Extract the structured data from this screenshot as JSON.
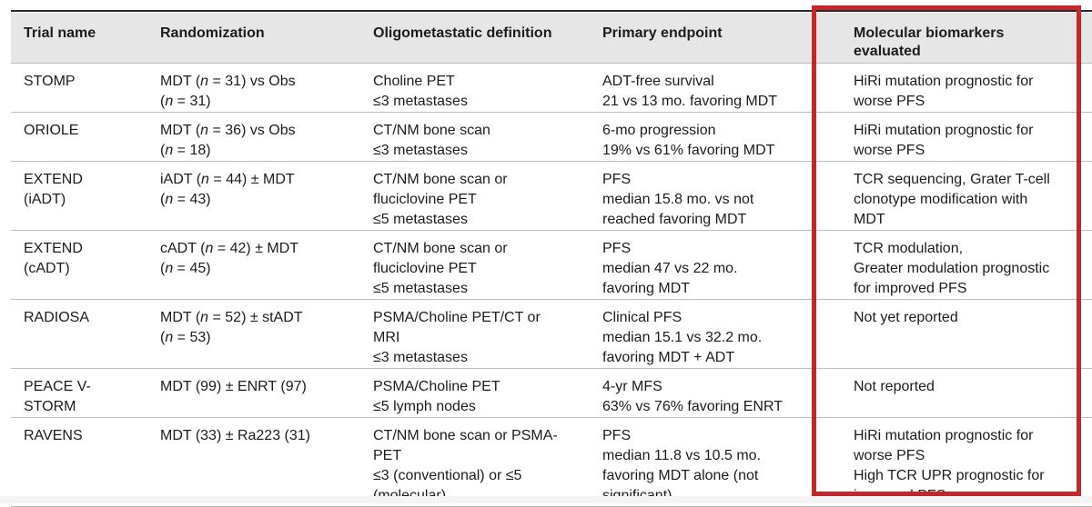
{
  "header": {
    "trial_name": "Trial name",
    "randomization": "Randomization",
    "definition": "Oligometastatic definition",
    "endpoint": "Primary endpoint",
    "biomarkers": [
      "Molecular biomarkers",
      "evaluated"
    ]
  },
  "rows": [
    {
      "trial": [
        "STOMP"
      ],
      "randomization": [
        "MDT (n = 31) vs Obs",
        "(n = 31)"
      ],
      "definition": [
        "Choline PET",
        "≤3 metastases"
      ],
      "endpoint": [
        "ADT-free survival",
        "21 vs 13 mo. favoring MDT"
      ],
      "biomarkers": [
        "HiRi mutation prognostic for",
        "worse PFS"
      ]
    },
    {
      "trial": [
        "ORIOLE"
      ],
      "randomization": [
        "MDT (n = 36) vs Obs",
        "(n = 18)"
      ],
      "definition": [
        "CT/NM bone scan",
        "≤3 metastases"
      ],
      "endpoint": [
        "6-mo progression",
        "19% vs 61% favoring MDT"
      ],
      "biomarkers": [
        "HiRi mutation prognostic for",
        "worse PFS"
      ]
    },
    {
      "trial": [
        "EXTEND",
        "(iADT)"
      ],
      "randomization": [
        "iADT (n = 44) ± MDT",
        "(n = 43)"
      ],
      "definition": [
        "CT/NM bone scan or",
        "fluciclovine PET",
        "≤5 metastases"
      ],
      "endpoint": [
        "PFS",
        "median 15.8 mo. vs not",
        "reached favoring MDT"
      ],
      "biomarkers": [
        "TCR sequencing, Grater T-cell",
        "clonotype modification with",
        "MDT"
      ]
    },
    {
      "trial": [
        "EXTEND",
        "(cADT)"
      ],
      "randomization": [
        "cADT (n = 42) ± MDT",
        "(n = 45)"
      ],
      "definition": [
        "CT/NM bone scan or",
        "fluciclovine PET",
        "≤5 metastases"
      ],
      "endpoint": [
        "PFS",
        "median 47 vs 22 mo.",
        "favoring MDT"
      ],
      "biomarkers": [
        "TCR modulation,",
        "Greater modulation prognostic",
        "for improved PFS"
      ]
    },
    {
      "trial": [
        "RADIOSA"
      ],
      "randomization": [
        "MDT (n = 52) ± stADT",
        "(n = 53)"
      ],
      "definition": [
        "PSMA/Choline PET/CT or",
        "MRI",
        "≤3 metastases"
      ],
      "endpoint": [
        "Clinical PFS",
        "median 15.1 vs 32.2 mo.",
        "favoring MDT + ADT"
      ],
      "biomarkers": [
        "Not yet reported"
      ]
    },
    {
      "trial": [
        "PEACE V-",
        "STORM"
      ],
      "randomization": [
        "MDT (99) ± ENRT (97)"
      ],
      "definition": [
        "PSMA/Choline PET",
        "≤5 lymph nodes"
      ],
      "endpoint": [
        "4-yr MFS",
        "63% vs 76% favoring ENRT"
      ],
      "biomarkers": [
        "Not reported"
      ]
    },
    {
      "trial": [
        "RAVENS"
      ],
      "randomization": [
        "MDT (33) ± Ra223 (31)"
      ],
      "definition": [
        "CT/NM bone scan or PSMA-",
        "PET",
        "≤3 (conventional) or ≤5",
        "(molecular)"
      ],
      "endpoint": [
        "PFS",
        "median 11.8 vs 10.5 mo.",
        "favoring MDT alone (not",
        "significant)"
      ],
      "biomarkers": [
        "HiRi mutation prognostic for",
        "worse PFS",
        "High TCR UPR prognostic for",
        "improved PFS"
      ]
    }
  ],
  "colors": {
    "header_bg": "#e6e6e6",
    "highlight_border": "#c3272b",
    "rule": "#bdbdbd"
  }
}
